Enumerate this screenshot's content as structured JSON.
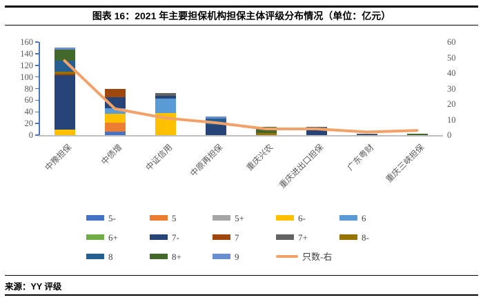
{
  "header": {
    "title": "图表 16：2021 年主要担保机构担保主体评级分布情况（单位：亿元）"
  },
  "footer": {
    "source": "来源：YY 评级"
  },
  "colors": {
    "axis_line": "#4472C4",
    "baseline": "#BFBFBF",
    "axis_text": "#595959",
    "line_series": "#F2A269"
  },
  "chart_data": {
    "type": "bar",
    "subtype": "stacked-column-with-line",
    "title": "图表 16：2021 年主要担保机构担保主体评级分布情况（单位：亿元）",
    "grid": false,
    "legend_position": "bottom",
    "categories": [
      "中豫担保",
      "中债增",
      "中证信用",
      "中原再担保",
      "重庆兴农",
      "重庆进出口担保",
      "广东粤财",
      "重庆三峡担保"
    ],
    "series": [
      {
        "name": "5-",
        "color": "#4472C4",
        "values": [
          0,
          6,
          0,
          0,
          0,
          0,
          0,
          0
        ]
      },
      {
        "name": "5",
        "color": "#ED7D31",
        "values": [
          0,
          15,
          0,
          0,
          0,
          0,
          0,
          0
        ]
      },
      {
        "name": "5+",
        "color": "#A5A5A5",
        "values": [
          0,
          0,
          0,
          0,
          0,
          0,
          0,
          0
        ]
      },
      {
        "name": "6-",
        "color": "#FFC000",
        "values": [
          10,
          16,
          38,
          0,
          0,
          0,
          0,
          0
        ]
      },
      {
        "name": "6",
        "color": "#5B9BD5",
        "values": [
          0,
          9,
          25,
          0,
          0,
          0,
          0,
          0
        ]
      },
      {
        "name": "6+",
        "color": "#70AD47",
        "values": [
          0,
          0,
          0,
          0,
          0,
          0,
          0,
          0
        ]
      },
      {
        "name": "7-",
        "color": "#264478",
        "values": [
          93,
          19,
          4,
          18,
          0,
          9,
          1,
          0
        ]
      },
      {
        "name": "7",
        "color": "#9E480E",
        "values": [
          3,
          15,
          0,
          0,
          0,
          0,
          0,
          0
        ]
      },
      {
        "name": "7+",
        "color": "#636363",
        "values": [
          0,
          0,
          5,
          0,
          0,
          5,
          1,
          0
        ]
      },
      {
        "name": "8-",
        "color": "#997300",
        "values": [
          3,
          0,
          0,
          0,
          4,
          0,
          0,
          0
        ]
      },
      {
        "name": "8",
        "color": "#255E91",
        "values": [
          19,
          0,
          0,
          10,
          0,
          0,
          0,
          0
        ]
      },
      {
        "name": "8+",
        "color": "#43682B",
        "values": [
          19,
          0,
          0,
          0,
          10,
          0,
          0,
          2
        ]
      },
      {
        "name": "9",
        "color": "#698ED0",
        "values": [
          4,
          0,
          0,
          4,
          0,
          0,
          0,
          0
        ]
      }
    ],
    "line_series": {
      "name": "只数-右",
      "color": "#F2A269",
      "values": [
        48,
        17,
        11,
        8,
        4,
        4,
        2,
        3
      ]
    },
    "left_axis": {
      "min": 0,
      "max": 160,
      "step": 20,
      "tick_labels": [
        "0",
        "20",
        "40",
        "60",
        "80",
        "100",
        "120",
        "140",
        "160"
      ]
    },
    "right_axis": {
      "min": 0,
      "max": 60,
      "step": 10,
      "tick_labels": [
        "0",
        "10",
        "20",
        "30",
        "40",
        "50",
        "60"
      ]
    }
  }
}
